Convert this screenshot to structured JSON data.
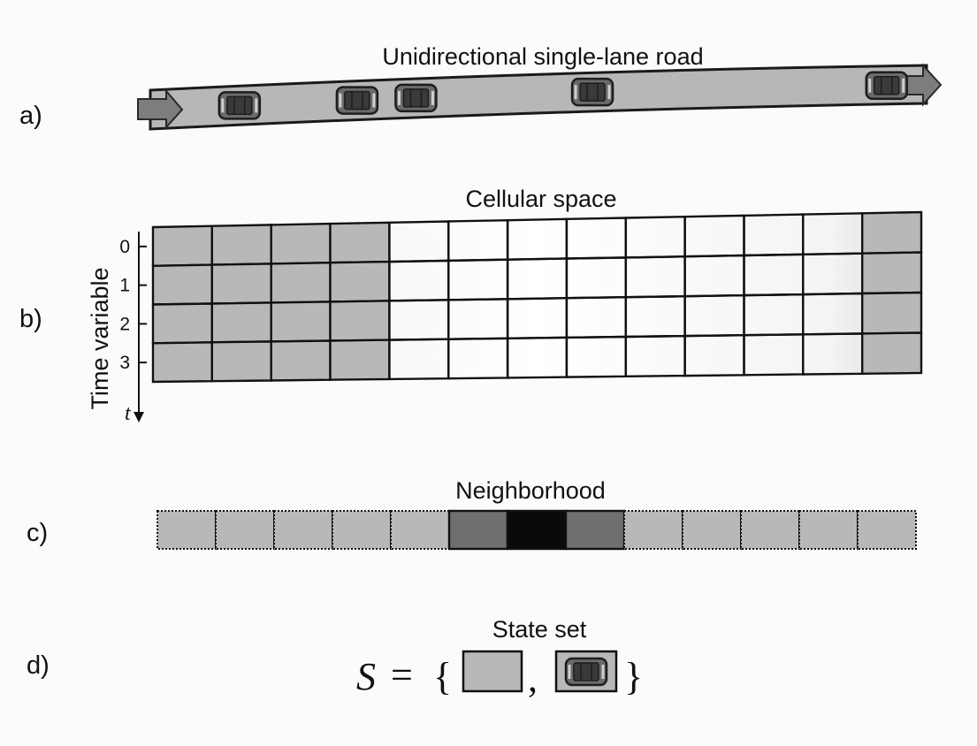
{
  "panels": {
    "a": {
      "label": "a)",
      "title": "Unidirectional single-lane road",
      "car_cells": [
        1,
        3,
        4,
        7,
        12
      ]
    },
    "b": {
      "label": "b)",
      "title": "Cellular space",
      "axis_label": "Time variable",
      "axis_symbol": "t",
      "rows": [
        "0",
        "1",
        "2",
        "3"
      ],
      "columns": 13,
      "gray_columns": [
        0,
        1,
        2,
        3,
        12
      ]
    },
    "c": {
      "label": "c)",
      "title": "Neighborhood",
      "cells": 13,
      "center_cell": 6,
      "neighbor_cells": [
        5,
        7
      ]
    },
    "d": {
      "label": "d)",
      "title": "State set",
      "lhs": "S",
      "equals": "=",
      "open_brace": "{",
      "separator": ",",
      "close_brace": "}"
    }
  },
  "colors": {
    "road": "#b7b7b7",
    "road_edge": "#1a1a1a",
    "arrow": "#7d7d7d",
    "car_body": "#6a6a6a",
    "car_window": "#3a3a3a",
    "empty_cell_gray": "#b8b8b8",
    "empty_cell_white": "#ffffff",
    "neighbor": "#6f6f6f",
    "center": "#0a0a0a",
    "ink": "#111111"
  }
}
